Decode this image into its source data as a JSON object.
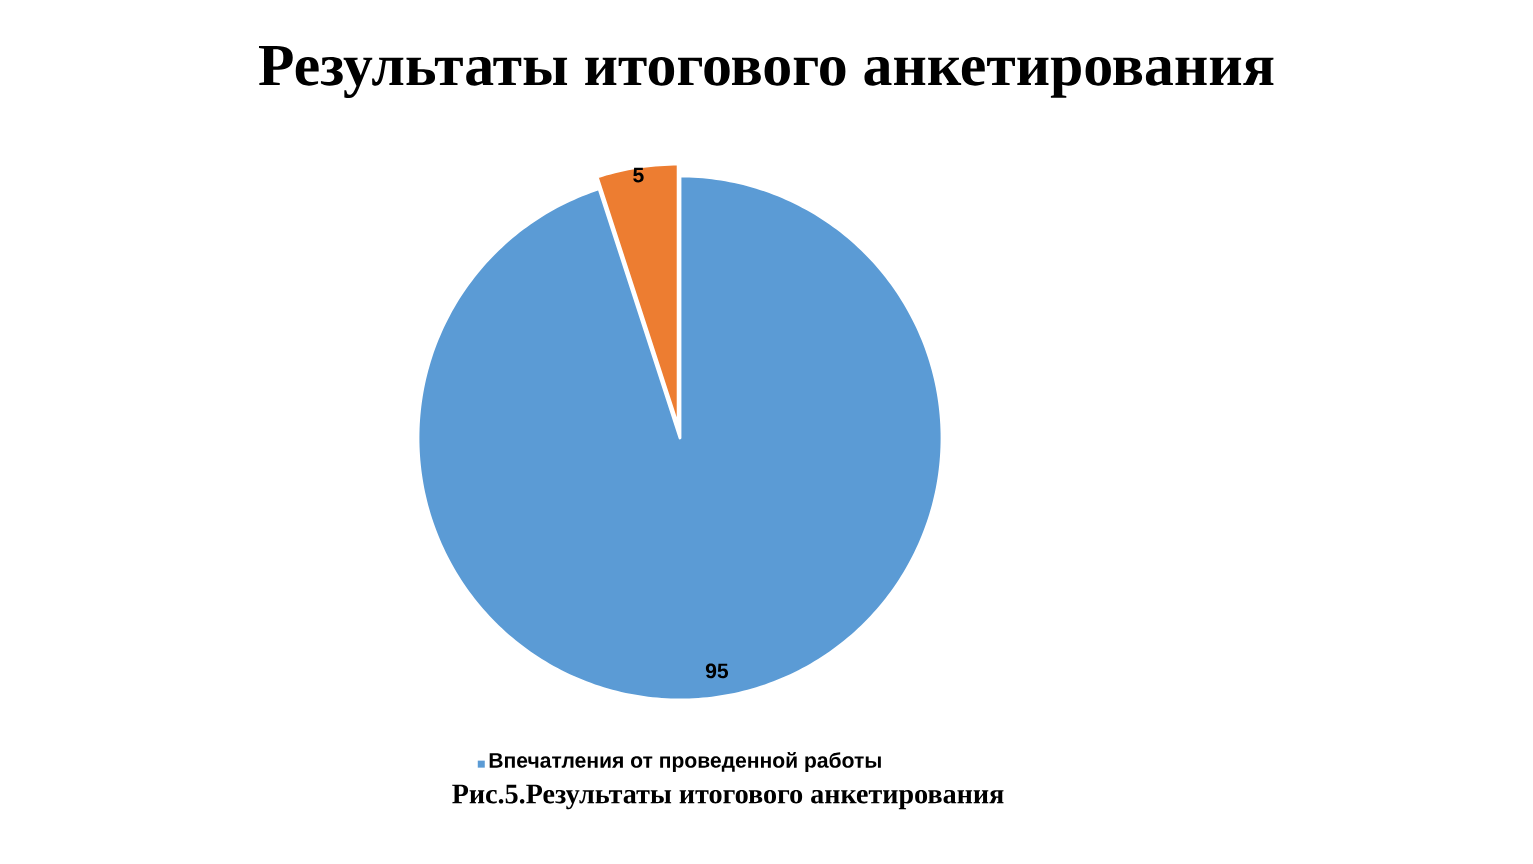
{
  "chart_data": {
    "type": "pie",
    "title": "Результаты  итогового анкетирования",
    "categories": [
      "Впечатления от проведенной работы",
      null
    ],
    "values": [
      95,
      5
    ],
    "colors": [
      "#5b9bd5",
      "#ed7d31"
    ],
    "data_labels": true,
    "legend": "bottom",
    "annotations": [
      "Рис.5.Результаты итогового анкетирования"
    ]
  }
}
